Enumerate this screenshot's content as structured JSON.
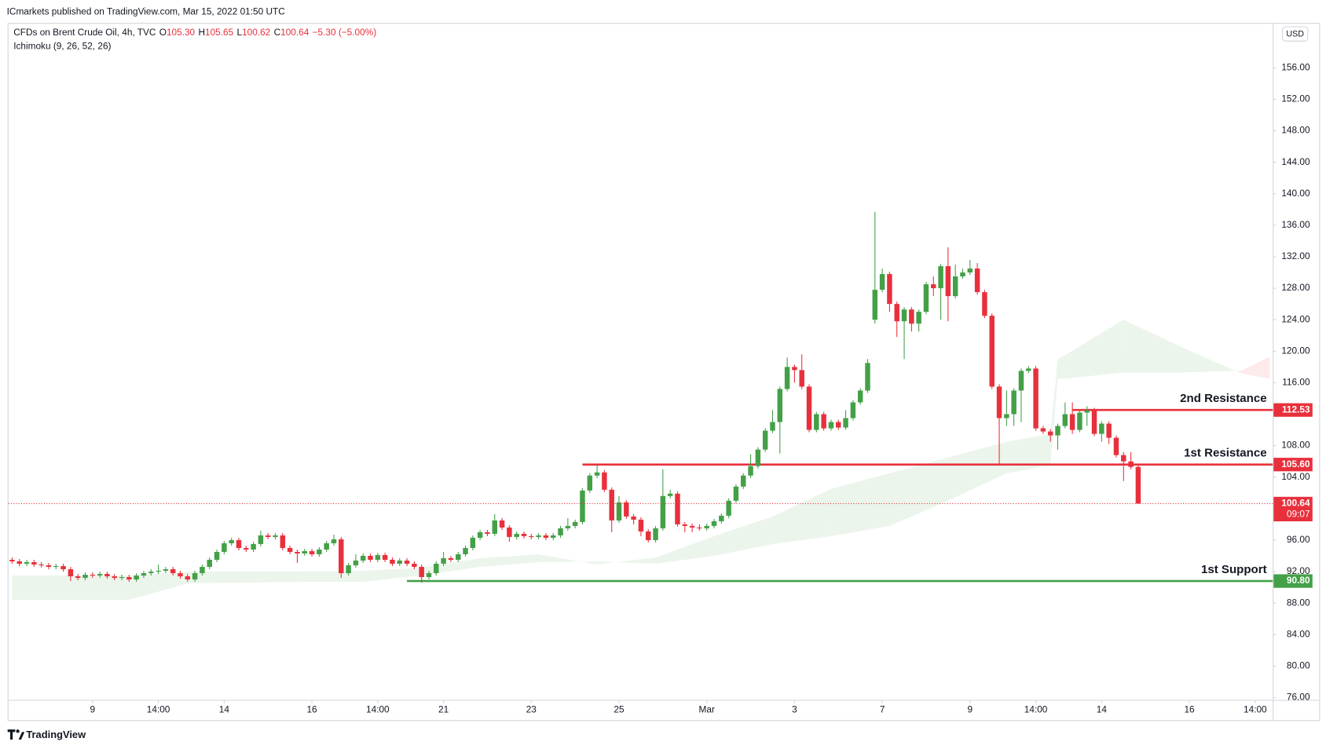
{
  "header": {
    "publisher": "ICmarkets published on TradingView.com, Mar 15, 2022 01:50 UTC",
    "ohlc": [
      {
        "key": "O",
        "value": "105.30"
      },
      {
        "key": "H",
        "value": "105.65"
      },
      {
        "key": "L",
        "value": "100.62"
      },
      {
        "key": "C",
        "value": "100.64"
      }
    ],
    "change": "−5.30 (−5.00%)",
    "indicator": "Ichimoku (9, 26, 52, 26)",
    "currency": "USD",
    "countdown": "09:07"
  },
  "footer": {
    "brand": "TradingView"
  },
  "chart_data": {
    "type": "candlestick",
    "title": "CFDs on Brent Crude Oil, 4h, TVC",
    "up_color": "#43a047",
    "down_color": "#e8303c",
    "open": [
      93.5,
      93.3,
      93.0,
      93.2,
      92.9,
      92.8,
      92.6,
      92.7,
      92.3,
      91.4,
      91.2,
      91.6,
      91.5,
      91.7,
      91.4,
      91.2,
      91.3,
      91.0,
      91.5,
      91.8,
      92.0,
      92.1,
      92.3,
      91.8,
      91.4,
      91.0,
      91.8,
      92.6,
      93.5,
      94.5,
      95.6,
      96.0,
      95.0,
      94.8,
      95.5,
      96.6,
      96.4,
      96.6,
      95.0,
      94.5,
      94.3,
      94.6,
      94.2,
      94.8,
      95.6,
      96.1,
      91.8,
      92.8,
      93.4,
      94.0,
      93.5,
      94.1,
      93.5,
      93.0,
      93.4,
      93.0,
      92.6,
      91.3,
      91.8,
      93.0,
      93.7,
      93.5,
      94.2,
      95.0,
      96.3,
      97.0,
      96.8,
      98.5,
      97.6,
      96.4,
      96.8,
      96.5,
      96.4,
      96.6,
      96.3,
      96.6,
      97.5,
      97.8,
      98.3,
      102.3,
      104.2,
      104.6,
      102.4,
      98.5,
      100.8,
      99.0,
      98.6,
      97.1,
      96.0,
      97.5,
      101.6,
      101.9,
      98.0,
      97.8,
      97.6,
      97.5,
      97.8,
      98.4,
      99.1,
      101.0,
      102.8,
      104.2,
      105.4,
      107.5,
      109.9,
      111.0,
      115.2,
      118.0,
      117.6,
      115.5,
      110.0,
      112.0,
      110.2,
      111.0,
      110.3,
      111.5,
      113.5,
      115.0,
      124.0,
      127.8,
      129.8,
      126.0,
      123.8,
      125.3,
      123.5,
      125.0,
      128.5,
      128.0,
      130.8,
      127.0,
      129.5,
      130.0,
      130.5,
      127.5,
      124.5,
      115.5,
      111.5,
      112.0,
      115.0,
      117.5,
      117.8,
      110.2,
      109.8,
      109.3,
      110.5,
      112.0,
      110.0,
      112.2,
      112.5,
      109.5,
      110.8,
      109.0,
      106.8,
      106.0,
      105.3
    ],
    "high": [
      93.8,
      93.6,
      93.5,
      93.5,
      93.2,
      93.1,
      93.0,
      93.0,
      92.6,
      91.7,
      91.9,
      91.9,
      92.0,
      92.0,
      91.7,
      91.6,
      91.6,
      91.8,
      92.1,
      92.3,
      92.9,
      92.6,
      92.6,
      92.1,
      91.7,
      92.1,
      92.9,
      93.8,
      94.8,
      95.9,
      96.3,
      96.3,
      95.3,
      95.8,
      97.2,
      96.9,
      96.9,
      96.9,
      95.3,
      94.8,
      94.9,
      94.9,
      95.1,
      95.9,
      96.7,
      96.4,
      93.1,
      94.2,
      94.3,
      94.3,
      94.4,
      94.4,
      93.8,
      93.7,
      93.7,
      93.3,
      92.9,
      92.1,
      93.3,
      94.5,
      94.0,
      94.5,
      95.3,
      96.6,
      97.3,
      97.3,
      99.3,
      98.8,
      97.9,
      97.1,
      97.1,
      96.8,
      96.9,
      96.9,
      96.9,
      97.8,
      98.8,
      98.6,
      102.6,
      104.5,
      105.5,
      104.9,
      102.7,
      101.6,
      101.1,
      99.3,
      98.9,
      97.4,
      97.8,
      105.0,
      102.4,
      102.2,
      98.3,
      98.1,
      98.0,
      98.1,
      98.7,
      99.4,
      101.3,
      103.1,
      104.5,
      106.9,
      107.8,
      110.2,
      112.5,
      115.5,
      119.2,
      118.3,
      119.6,
      115.8,
      112.3,
      112.3,
      111.3,
      111.3,
      112.5,
      113.8,
      115.3,
      119.0,
      137.7,
      130.5,
      130.1,
      126.3,
      125.6,
      125.6,
      125.3,
      128.8,
      129.5,
      131.1,
      133.2,
      131.0,
      130.5,
      131.6,
      131.2,
      127.8,
      124.8,
      115.8,
      115.0,
      115.3,
      117.8,
      118.1,
      118.1,
      110.5,
      110.1,
      110.8,
      113.5,
      113.5,
      112.5,
      113.0,
      112.8,
      111.1,
      111.1,
      109.3,
      107.2,
      107.2,
      105.65
    ],
    "low": [
      93.0,
      92.7,
      92.7,
      92.6,
      92.5,
      92.3,
      92.3,
      92.0,
      90.8,
      90.9,
      90.9,
      91.2,
      91.2,
      91.1,
      90.9,
      90.9,
      90.7,
      90.7,
      91.2,
      91.5,
      91.7,
      91.8,
      91.5,
      91.1,
      90.7,
      90.7,
      91.5,
      92.3,
      93.2,
      94.2,
      95.3,
      94.7,
      94.5,
      94.5,
      95.2,
      96.1,
      96.1,
      94.7,
      94.2,
      93.1,
      94.0,
      93.9,
      93.9,
      94.5,
      95.3,
      91.2,
      91.5,
      92.5,
      93.1,
      93.2,
      93.2,
      93.2,
      92.7,
      92.7,
      92.7,
      92.3,
      90.6,
      91.0,
      91.5,
      92.7,
      93.2,
      93.2,
      93.9,
      94.7,
      96.0,
      96.5,
      96.5,
      97.3,
      95.8,
      96.1,
      96.2,
      96.1,
      96.1,
      96.0,
      96.0,
      96.3,
      97.2,
      97.5,
      98.0,
      102.0,
      103.9,
      102.1,
      97.0,
      98.2,
      98.7,
      98.0,
      96.5,
      95.7,
      95.7,
      97.2,
      101.3,
      97.7,
      97.0,
      97.0,
      97.2,
      97.2,
      97.5,
      98.1,
      98.8,
      100.7,
      102.5,
      103.9,
      105.1,
      107.2,
      109.6,
      107.0,
      114.9,
      116.0,
      115.2,
      109.7,
      109.7,
      109.9,
      109.9,
      110.0,
      110.0,
      111.2,
      113.2,
      114.7,
      123.5,
      127.5,
      125.0,
      121.8,
      119.0,
      122.5,
      122.5,
      124.7,
      127.0,
      124.0,
      123.8,
      126.7,
      129.2,
      129.7,
      127.2,
      124.2,
      115.2,
      105.6,
      110.5,
      110.5,
      111.0,
      117.2,
      109.9,
      109.5,
      108.5,
      107.5,
      110.2,
      109.5,
      109.7,
      110.5,
      109.2,
      108.5,
      108.2,
      106.5,
      103.5,
      105.0,
      100.62
    ],
    "close": [
      93.3,
      93.0,
      93.2,
      92.9,
      92.8,
      92.6,
      92.7,
      92.3,
      91.4,
      91.2,
      91.6,
      91.5,
      91.7,
      91.4,
      91.2,
      91.3,
      91.0,
      91.5,
      91.8,
      92.0,
      92.1,
      92.3,
      91.8,
      91.4,
      91.0,
      91.8,
      92.6,
      93.5,
      94.5,
      95.6,
      96.0,
      95.0,
      94.8,
      95.5,
      96.6,
      96.4,
      96.6,
      95.0,
      94.5,
      94.3,
      94.6,
      94.2,
      94.8,
      95.6,
      96.1,
      91.8,
      92.8,
      93.4,
      94.0,
      93.5,
      94.1,
      93.5,
      93.0,
      93.4,
      93.0,
      92.6,
      91.3,
      91.8,
      93.0,
      93.7,
      93.5,
      94.2,
      95.0,
      96.3,
      97.0,
      96.8,
      98.5,
      97.6,
      96.4,
      96.8,
      96.5,
      96.4,
      96.6,
      96.3,
      96.6,
      97.5,
      97.8,
      98.3,
      102.3,
      104.2,
      104.6,
      102.4,
      98.5,
      100.8,
      99.0,
      98.6,
      97.1,
      96.0,
      97.5,
      101.6,
      101.9,
      98.0,
      97.8,
      97.6,
      97.5,
      97.8,
      98.4,
      99.1,
      101.0,
      102.8,
      104.2,
      105.4,
      107.5,
      109.9,
      111.0,
      115.2,
      118.0,
      117.6,
      115.5,
      110.0,
      112.0,
      110.2,
      111.0,
      110.3,
      111.5,
      113.5,
      115.0,
      118.5,
      127.8,
      129.8,
      126.0,
      123.8,
      125.3,
      123.5,
      125.0,
      128.5,
      128.0,
      130.8,
      127.0,
      129.5,
      130.0,
      130.5,
      127.5,
      124.5,
      115.5,
      111.5,
      112.0,
      115.0,
      117.5,
      117.8,
      110.2,
      109.8,
      109.3,
      110.5,
      112.0,
      110.0,
      112.2,
      112.5,
      109.5,
      110.8,
      109.0,
      106.8,
      106.0,
      105.3,
      100.64
    ],
    "cloud": {
      "up_color": "#43a047",
      "down_color": "#e8303c",
      "x": [
        0,
        8,
        16,
        24,
        32,
        40,
        48,
        56,
        64,
        72,
        80,
        88,
        96,
        104,
        112,
        120,
        128,
        136,
        142,
        143,
        144,
        152,
        160,
        168,
        172
      ],
      "span_a": [
        91.5,
        91.5,
        91.5,
        92.0,
        92.0,
        92.0,
        92.1,
        92.5,
        93.7,
        94.2,
        92.9,
        93.8,
        96.5,
        99.0,
        102.5,
        104.5,
        106.5,
        108.5,
        109.5,
        119.0,
        119.5,
        124.0,
        120.5,
        117.2,
        116.5
      ],
      "span_b": [
        88.4,
        88.4,
        88.4,
        90.5,
        90.6,
        90.7,
        90.7,
        91.5,
        92.6,
        93.2,
        93.3,
        93.0,
        94.0,
        95.5,
        96.5,
        97.8,
        101.0,
        104.5,
        105.5,
        116.5,
        116.5,
        117.3,
        117.3,
        117.5,
        119.3
      ]
    },
    "levels": [
      {
        "label": "2nd Resistance",
        "value": 112.53,
        "value_label": "112.53",
        "color": "#e8303c",
        "start": 145
      },
      {
        "label": "1st Resistance",
        "value": 105.6,
        "value_label": "105.60",
        "color": "#e8303c",
        "start": 78
      },
      {
        "label": "1st Support",
        "value": 90.8,
        "value_label": "90.80",
        "color": "#43a047",
        "start": 54
      }
    ],
    "xlim": [
      -0.5,
      172.4
    ],
    "xticks": [
      {
        "value": 11,
        "label": "9"
      },
      {
        "value": 20,
        "label": "14:00"
      },
      {
        "value": 29,
        "label": "14"
      },
      {
        "value": 41,
        "label": "16"
      },
      {
        "value": 50,
        "label": "14:00"
      },
      {
        "value": 59,
        "label": "21"
      },
      {
        "value": 71,
        "label": "23"
      },
      {
        "value": 83,
        "label": "25"
      },
      {
        "value": 95,
        "label": "Mar"
      },
      {
        "value": 107,
        "label": "3"
      },
      {
        "value": 119,
        "label": "7"
      },
      {
        "value": 131,
        "label": "9"
      },
      {
        "value": 140,
        "label": "14:00"
      },
      {
        "value": 149,
        "label": "14"
      },
      {
        "value": 161,
        "label": "16"
      },
      {
        "value": 170,
        "label": "14:00"
      }
    ],
    "ylim": [
      75.7,
      161.6
    ],
    "yticks": [
      {
        "value": 76,
        "label": "76.00"
      },
      {
        "value": 80,
        "label": "80.00"
      },
      {
        "value": 84,
        "label": "84.00"
      },
      {
        "value": 88,
        "label": "88.00"
      },
      {
        "value": 92,
        "label": "92.00"
      },
      {
        "value": 96,
        "label": "96.00"
      },
      {
        "value": 100,
        "label": "100.00"
      },
      {
        "value": 104,
        "label": "104.00"
      },
      {
        "value": 108,
        "label": "108.00"
      },
      {
        "value": 112,
        "label": "112.00"
      },
      {
        "value": 116,
        "label": "116.00"
      },
      {
        "value": 120,
        "label": "120.00"
      },
      {
        "value": 124,
        "label": "124.00"
      },
      {
        "value": 128,
        "label": "128.00"
      },
      {
        "value": 132,
        "label": "132.00"
      },
      {
        "value": 136,
        "label": "136.00"
      },
      {
        "value": 140,
        "label": "140.00"
      },
      {
        "value": 144,
        "label": "144.00"
      },
      {
        "value": 148,
        "label": "148.00"
      },
      {
        "value": 152,
        "label": "152.00"
      },
      {
        "value": 156,
        "label": "156.00"
      }
    ],
    "grid": false
  }
}
